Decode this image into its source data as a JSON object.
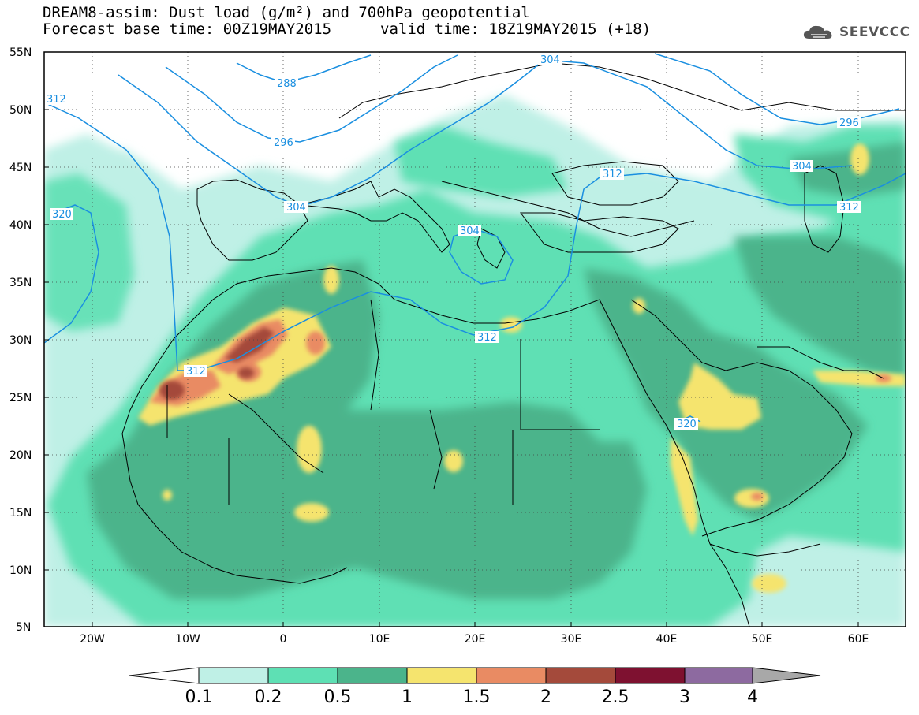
{
  "header": {
    "title_line1": "DREAM8-assim: Dust load (g/m²) and 700hPa geopotential",
    "title_line2": "Forecast base time: 00Z19MAY2015",
    "valid_time": "valid time: 18Z19MAY2015 (+18)",
    "logo_text": "SEEVCCC",
    "logo_icon": "cloud-logo-icon"
  },
  "map": {
    "lon_range": [
      -25,
      65
    ],
    "lat_range": [
      5,
      55
    ],
    "lat_labels": [
      "55N",
      "50N",
      "45N",
      "40N",
      "35N",
      "30N",
      "25N",
      "20N",
      "15N",
      "10N",
      "5N"
    ],
    "lon_labels": [
      "20W",
      "10W",
      "0",
      "10E",
      "20E",
      "30E",
      "40E",
      "50E",
      "60E"
    ],
    "contour_labels": [
      "288",
      "296",
      "304",
      "312",
      "320",
      "304",
      "312",
      "296",
      "304",
      "312",
      "312",
      "320",
      "312",
      "304"
    ],
    "contour_color": "#1a8fe0",
    "grid": "dotted"
  },
  "colorbar": {
    "ticks": [
      "0.1",
      "0.2",
      "0.5",
      "1",
      "1.5",
      "2",
      "2.5",
      "3",
      "4"
    ],
    "colors": [
      "#bff0e6",
      "#5ee0b4",
      "#4bb48b",
      "#f5e46e",
      "#e98b63",
      "#a44a3b",
      "#7e1130",
      "#8d6aa0"
    ],
    "under_color": "#ffffff",
    "over_color": "#a8a8a8"
  }
}
